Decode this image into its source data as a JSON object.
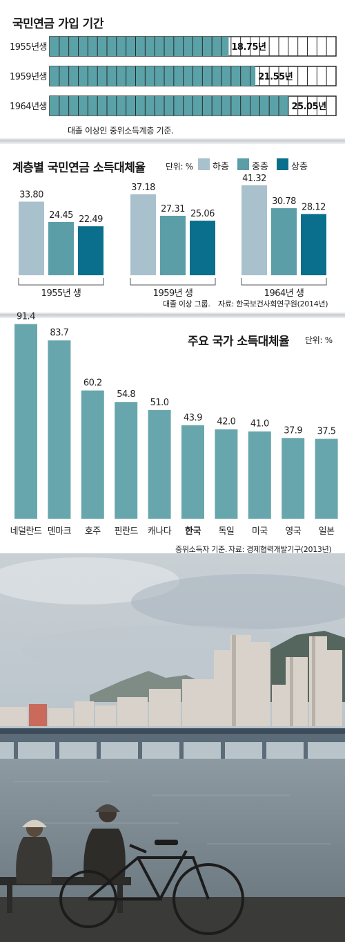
{
  "colors": {
    "teal": "#5aa2a8",
    "low": "#a9c1cd",
    "mid": "#5b9ea8",
    "high": "#0a6f8c",
    "country": "#68a6ad"
  },
  "chart_data": [
    {
      "type": "bar",
      "orientation": "horizontal",
      "title": "국민연금 가입 기간",
      "categories": [
        "1955년생",
        "1959년생",
        "1964년생"
      ],
      "values": [
        18.75,
        21.55,
        25.05
      ],
      "value_labels": [
        "18.75년",
        "21.55년",
        "25.05년"
      ],
      "unit": "년",
      "xlim": [
        0,
        30
      ],
      "note": "대졸 이상인 중위소득계층 기준."
    },
    {
      "type": "bar",
      "title": "계층별 국민연금 소득대체율",
      "unit_label": "단위: %",
      "categories": [
        "1955년 생",
        "1959년 생",
        "1964년 생"
      ],
      "series": [
        {
          "name": "하층",
          "values": [
            33.8,
            37.18,
            41.32
          ],
          "labels": [
            "33.80",
            "37.18",
            "41.32"
          ]
        },
        {
          "name": "중층",
          "values": [
            24.45,
            27.31,
            30.78
          ],
          "labels": [
            "24.45",
            "27.31",
            "30.78"
          ]
        },
        {
          "name": "상층",
          "values": [
            22.49,
            25.06,
            28.12
          ],
          "labels": [
            "22.49",
            "25.06",
            "28.12"
          ]
        }
      ],
      "legend": "top-right",
      "note": "대졸 이상 그룹.",
      "source": "자료: 한국보건사회연구원(2014년)"
    },
    {
      "type": "bar",
      "title": "주요 국가 소득대체율",
      "unit_label": "단위: %",
      "categories": [
        "네덜란드",
        "덴마크",
        "호주",
        "핀란드",
        "캐나다",
        "한국",
        "독일",
        "미국",
        "영국",
        "일본"
      ],
      "values": [
        91.4,
        83.7,
        60.2,
        54.8,
        51.0,
        43.9,
        42.0,
        41.0,
        37.9,
        37.5
      ],
      "labels": [
        "91.4",
        "83.7",
        "60.2",
        "54.8",
        "51.0",
        "43.9",
        "42.0",
        "41.0",
        "37.9",
        "37.5"
      ],
      "highlight": "한국",
      "note": "중위소득자 기준.",
      "source": "자료: 경제협력개발기구(2013년)"
    }
  ]
}
